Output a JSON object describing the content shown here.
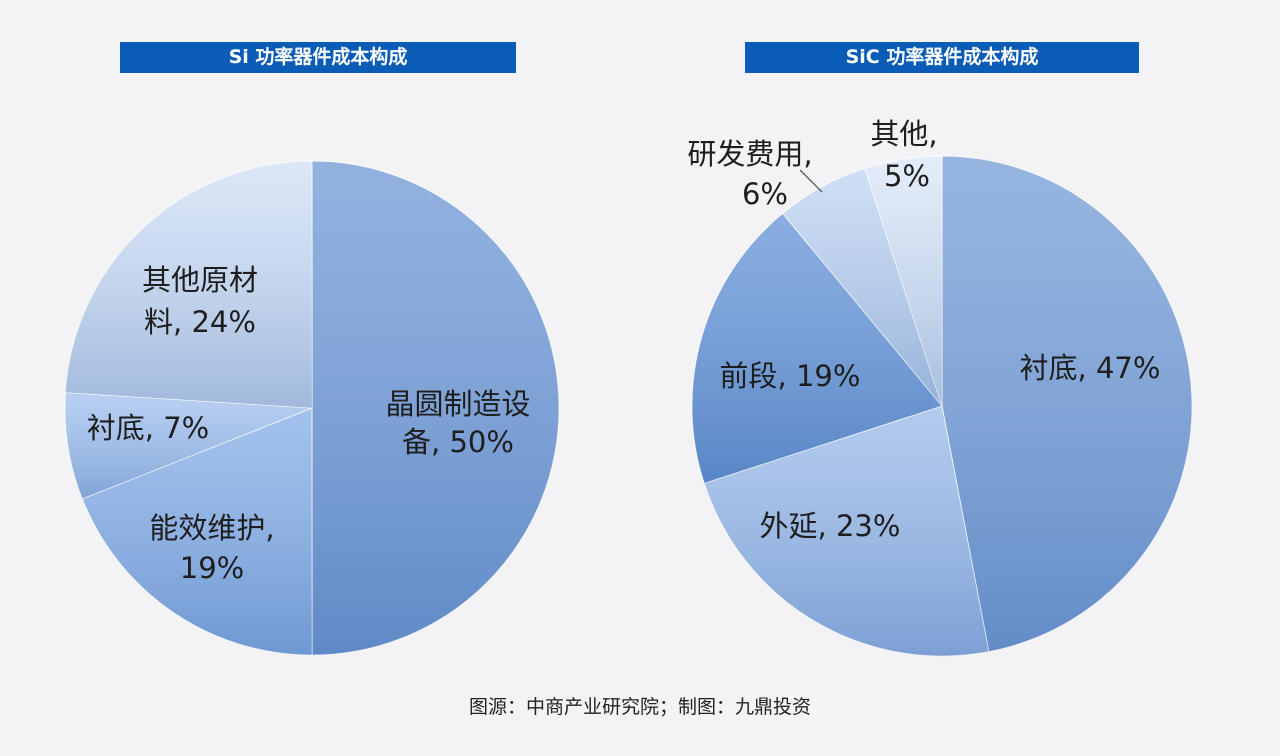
{
  "chart_data": [
    {
      "type": "pie",
      "title": "Si 功率器件成本构成",
      "categories": [
        "晶圆制造设备",
        "能效维护",
        "衬底",
        "其他原材料"
      ],
      "values": [
        50,
        19,
        7,
        24
      ],
      "unit": "%",
      "label_lines": [
        [
          "晶圆制造设",
          "备, 50%"
        ],
        [
          "能效维护,",
          "19%"
        ],
        [
          "衬底, 7%"
        ],
        [
          "其他原材",
          "料, 24%"
        ]
      ],
      "colors": [
        "#7aa0d8",
        "#8fb4e8",
        "#a8c5ef",
        "#d4e2f6"
      ]
    },
    {
      "type": "pie",
      "title": "SiC 功率器件成本构成",
      "categories": [
        "衬底",
        "外延",
        "前段",
        "研发费用",
        "其他"
      ],
      "values": [
        47,
        23,
        19,
        6,
        5
      ],
      "unit": "%",
      "label_lines": [
        [
          "衬底, 47%"
        ],
        [
          "外延, 23%"
        ],
        [
          "前段, 19%"
        ],
        [
          "研发费用,",
          "6%"
        ],
        [
          "其他,",
          "5%"
        ]
      ],
      "colors": [
        "#7fa4d9",
        "#a2bfea",
        "#6f9bd8",
        "#c4d7f2",
        "#dde8f8"
      ]
    }
  ],
  "source": "图源：中商产业研究院；制图：九鼎投资"
}
